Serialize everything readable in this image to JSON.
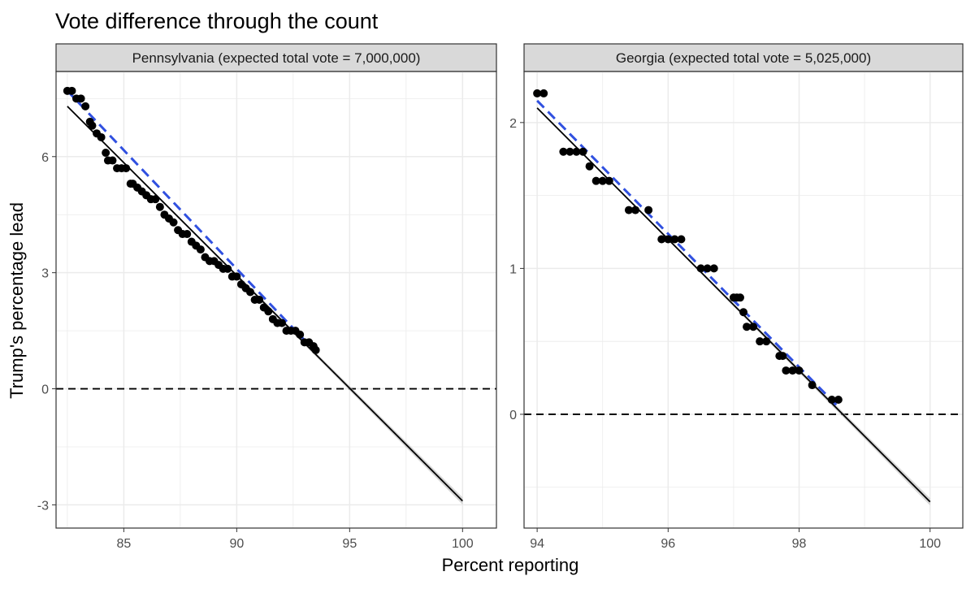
{
  "title": "Vote difference through the count",
  "xlabel": "Percent reporting",
  "ylabel": "Trump's percentage lead",
  "colors": {
    "points": "#000000",
    "fit_line": "#000000",
    "trend_dashed": "#3050e0",
    "zero_line": "#000000",
    "strip_fill": "#d9d9d9",
    "grid": "#ebebeb",
    "ribbon": "#bdbdbd"
  },
  "chart_data": [
    {
      "type": "scatter",
      "panel": "Pennsylvania (expected total vote = 7,000,000)",
      "xlim": [
        82,
        101.5
      ],
      "ylim": [
        -3.6,
        8.2
      ],
      "x_ticks": [
        85,
        90,
        95,
        100
      ],
      "x_tick_labels": [
        "85",
        "90",
        "95",
        "100"
      ],
      "y_ticks": [
        -3,
        0,
        3,
        6
      ],
      "y_tick_labels": [
        "-3",
        "0",
        "3",
        "6"
      ],
      "reference_line_y": 0,
      "fit_line": {
        "x": [
          82.5,
          100
        ],
        "y": [
          7.3,
          -2.9
        ]
      },
      "trend_line": {
        "x": [
          82.5,
          93.5
        ],
        "y": [
          7.7,
          0.95
        ]
      },
      "points": {
        "x": [
          82.5,
          82.7,
          82.9,
          83.1,
          83.3,
          83.5,
          83.6,
          83.8,
          84.0,
          84.2,
          84.3,
          84.5,
          84.7,
          84.9,
          85.1,
          85.3,
          85.4,
          85.6,
          85.8,
          86.0,
          86.2,
          86.4,
          86.6,
          86.8,
          87.0,
          87.2,
          87.4,
          87.6,
          87.8,
          88.0,
          88.2,
          88.4,
          88.6,
          88.8,
          89.0,
          89.2,
          89.4,
          89.6,
          89.8,
          90.0,
          90.2,
          90.4,
          90.6,
          90.8,
          91.0,
          91.2,
          91.4,
          91.6,
          91.8,
          92.0,
          92.2,
          92.4,
          92.6,
          92.8,
          93.0,
          93.2,
          93.4,
          93.5
        ],
        "y": [
          7.7,
          7.7,
          7.5,
          7.5,
          7.3,
          6.9,
          6.8,
          6.6,
          6.5,
          6.1,
          5.9,
          5.9,
          5.7,
          5.7,
          5.7,
          5.3,
          5.3,
          5.2,
          5.1,
          5.0,
          4.9,
          4.9,
          4.7,
          4.5,
          4.4,
          4.3,
          4.1,
          4.0,
          4.0,
          3.8,
          3.7,
          3.6,
          3.4,
          3.3,
          3.3,
          3.2,
          3.1,
          3.1,
          2.9,
          2.9,
          2.7,
          2.6,
          2.5,
          2.3,
          2.3,
          2.1,
          2.0,
          1.8,
          1.7,
          1.7,
          1.5,
          1.5,
          1.5,
          1.4,
          1.2,
          1.2,
          1.1,
          1.0
        ]
      }
    },
    {
      "type": "scatter",
      "panel": "Georgia (expected total vote = 5,025,000)",
      "xlim": [
        93.8,
        100.5
      ],
      "ylim": [
        -0.78,
        2.35
      ],
      "x_ticks": [
        94,
        96,
        98,
        100
      ],
      "x_tick_labels": [
        "94",
        "96",
        "98",
        "100"
      ],
      "y_ticks": [
        0,
        1,
        2
      ],
      "y_tick_labels": [
        "0",
        "1",
        "2"
      ],
      "reference_line_y": 0,
      "fit_line": {
        "x": [
          94.0,
          100.0
        ],
        "y": [
          2.1,
          -0.6
        ]
      },
      "trend_line": {
        "x": [
          94.0,
          98.6
        ],
        "y": [
          2.15,
          0.05
        ]
      },
      "points": {
        "x": [
          94.0,
          94.1,
          94.4,
          94.5,
          94.6,
          94.7,
          94.8,
          94.9,
          95.0,
          95.1,
          95.4,
          95.5,
          95.7,
          95.9,
          96.0,
          96.1,
          96.2,
          96.5,
          96.6,
          96.7,
          97.0,
          97.05,
          97.1,
          97.15,
          97.2,
          97.3,
          97.4,
          97.5,
          97.7,
          97.75,
          97.8,
          97.9,
          98.0,
          98.2,
          98.5,
          98.6
        ],
        "y": [
          2.2,
          2.2,
          1.8,
          1.8,
          1.8,
          1.8,
          1.7,
          1.6,
          1.6,
          1.6,
          1.4,
          1.4,
          1.4,
          1.2,
          1.2,
          1.2,
          1.2,
          1.0,
          1.0,
          1.0,
          0.8,
          0.8,
          0.8,
          0.7,
          0.6,
          0.6,
          0.5,
          0.5,
          0.4,
          0.4,
          0.3,
          0.3,
          0.3,
          0.2,
          0.1,
          0.1
        ]
      }
    }
  ]
}
